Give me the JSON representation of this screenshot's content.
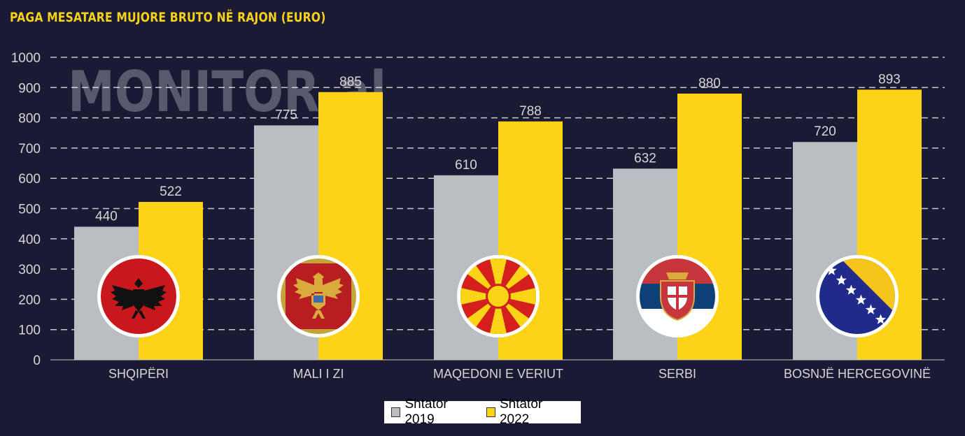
{
  "title": "PAGA MESATARE MUJORE BRUTO NË RAJON (EURO)",
  "watermark": "MONITOR.al",
  "colors": {
    "background": "#1a1a35",
    "title": "#f6d21a",
    "series_2019": "#b8bec2",
    "series_2022": "#fcd316",
    "axis_text": "#d6d6d6",
    "grid": "#c8c8c8"
  },
  "chart_data": {
    "type": "bar",
    "title": "PAGA MESATARE MUJORE BRUTO NË RAJON (EURO)",
    "categories": [
      "SHQIPËRI",
      "MALI I ZI",
      "MAQEDONI E VERIUT",
      "SERBI",
      "BOSNJË HERCEGOVINË"
    ],
    "series": [
      {
        "name": "Shtator 2019",
        "values": [
          440,
          775,
          610,
          632,
          720
        ]
      },
      {
        "name": "Shtator 2022",
        "values": [
          522,
          885,
          788,
          880,
          893
        ]
      }
    ],
    "ylim": [
      0,
      1000
    ],
    "yticks": [
      0,
      100,
      200,
      300,
      400,
      500,
      600,
      700,
      800,
      900,
      1000
    ],
    "grid": true,
    "legend_position": "bottom-center",
    "flags": [
      "albania-flag-icon",
      "montenegro-flag-icon",
      "north-macedonia-flag-icon",
      "serbia-flag-icon",
      "bosnia-herzegovina-flag-icon"
    ]
  }
}
